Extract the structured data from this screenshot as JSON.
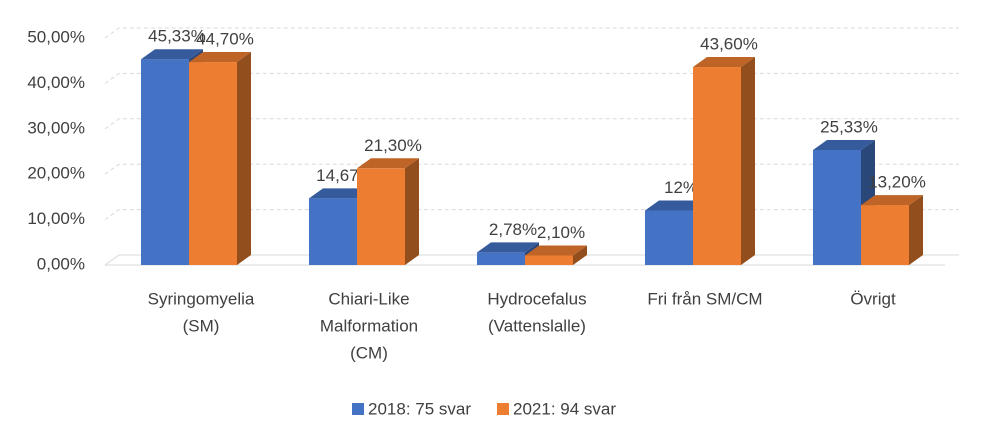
{
  "chart_data": {
    "type": "bar3d",
    "categories": [
      [
        "Syringomyelia",
        "(SM)"
      ],
      [
        "Chiari-Like",
        "Malformation",
        "(CM)"
      ],
      [
        "Hydrocefalus",
        "(Vattenslalle)"
      ],
      [
        "Fri från SM/CM"
      ],
      [
        "Övrigt"
      ]
    ],
    "series": [
      {
        "name": "2018: 75 svar",
        "color": "#4472c4",
        "values": [
          45.33,
          14.67,
          2.78,
          12,
          25.33
        ],
        "value_labels": [
          "45,33%",
          "14,67%",
          "2,78%",
          "12%",
          "25,33%"
        ]
      },
      {
        "name": "2021: 94 svar",
        "color": "#ed7d31",
        "values": [
          44.7,
          21.3,
          2.1,
          43.6,
          13.2
        ],
        "value_labels": [
          "44,70%",
          "21,30%",
          "2,10%",
          "43,60%",
          "13,20%"
        ]
      }
    ],
    "ylim": [
      0,
      50
    ],
    "yticks": [
      {
        "value": 0,
        "label": "0,00%"
      },
      {
        "value": 10,
        "label": "10,00%"
      },
      {
        "value": 20,
        "label": "20,00%"
      },
      {
        "value": 30,
        "label": "30,00%"
      },
      {
        "value": 40,
        "label": "40,00%"
      },
      {
        "value": 50,
        "label": "50,00%"
      }
    ],
    "grid": true,
    "legend": "bottom"
  }
}
